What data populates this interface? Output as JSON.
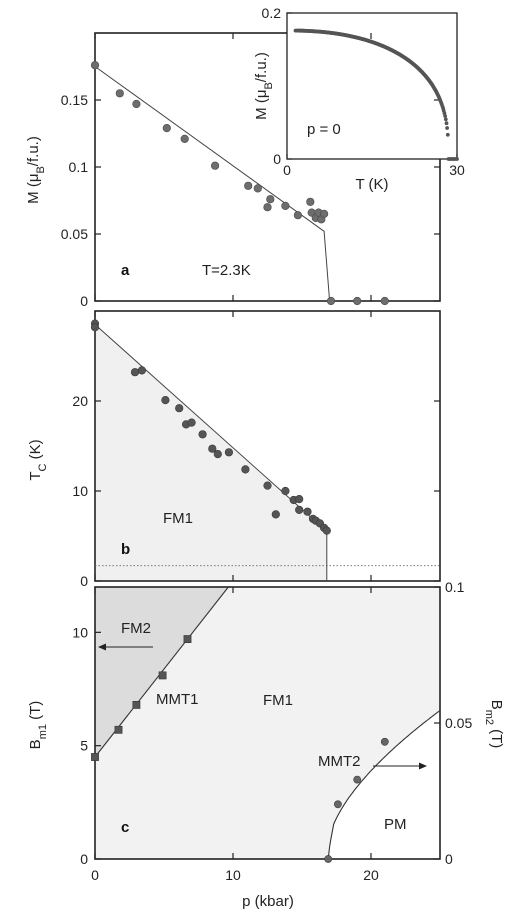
{
  "chart_data": [
    {
      "panel": "a",
      "type": "scatter",
      "annotation": "T=2.3K",
      "ylabel_main": "M (μ",
      "ylabel_sub": "B",
      "ylabel_tail": "/f.u.)",
      "xlim": [
        0,
        25
      ],
      "ylim": [
        0,
        0.2
      ],
      "yticks": [
        "0",
        "0.05",
        "0.1",
        "0.15"
      ],
      "points": [
        [
          0,
          0.176
        ],
        [
          1.8,
          0.155
        ],
        [
          3,
          0.147
        ],
        [
          5.2,
          0.129
        ],
        [
          6.5,
          0.121
        ],
        [
          8.7,
          0.101
        ],
        [
          11.1,
          0.086
        ],
        [
          11.8,
          0.084
        ],
        [
          12.7,
          0.076
        ],
        [
          12.5,
          0.07
        ],
        [
          13.8,
          0.071
        ],
        [
          14.7,
          0.064
        ],
        [
          15.6,
          0.074
        ],
        [
          15.7,
          0.066
        ],
        [
          16,
          0.062
        ],
        [
          16.2,
          0.066
        ],
        [
          16.4,
          0.061
        ],
        [
          16.6,
          0.065
        ],
        [
          17.1,
          0
        ],
        [
          19,
          0
        ],
        [
          21,
          0
        ]
      ],
      "fit_line": [
        [
          0,
          0.175
        ],
        [
          16.6,
          0.052
        ],
        [
          17,
          0
        ]
      ]
    },
    {
      "panel": "inset",
      "type": "scatter",
      "annotation": "p = 0",
      "xlabel": "T (K)",
      "ylabel_main": "M (μ",
      "ylabel_sub": "B",
      "ylabel_tail": "/f.u.)",
      "xlim": [
        0,
        30
      ],
      "ylim": [
        0,
        0.2
      ],
      "xticks": [
        "0",
        "30"
      ],
      "yticks": [
        "0",
        "0.2"
      ],
      "curve_Tc": 28.5,
      "curve_M0": 0.176
    },
    {
      "panel": "b",
      "type": "scatter",
      "region_label": "FM1",
      "ylabel_main": "T",
      "ylabel_sub": "C",
      "ylabel_tail": " (K)",
      "xlim": [
        0,
        25
      ],
      "ylim": [
        0,
        30
      ],
      "yticks": [
        "0",
        "10",
        "20"
      ],
      "dotted_line_y": 1.7,
      "points": [
        [
          0,
          28.6
        ],
        [
          0,
          28.2
        ],
        [
          2.9,
          23.2
        ],
        [
          3.4,
          23.4
        ],
        [
          5.1,
          20.1
        ],
        [
          6.1,
          19.2
        ],
        [
          6.6,
          17.4
        ],
        [
          7,
          17.6
        ],
        [
          7.8,
          16.3
        ],
        [
          8.5,
          14.7
        ],
        [
          8.9,
          14.1
        ],
        [
          9.7,
          14.3
        ],
        [
          10.9,
          12.4
        ],
        [
          12.5,
          10.6
        ],
        [
          13.1,
          7.4
        ],
        [
          13.8,
          10
        ],
        [
          14.4,
          9
        ],
        [
          14.8,
          9.1
        ],
        [
          14.8,
          7.9
        ],
        [
          15.4,
          7.7
        ],
        [
          15.8,
          6.9
        ],
        [
          16,
          6.7
        ],
        [
          16.3,
          6.4
        ],
        [
          16.6,
          5.9
        ],
        [
          16.8,
          5.6
        ]
      ],
      "phase_line": [
        [
          0,
          28.5
        ],
        [
          16.8,
          5.5
        ],
        [
          16.8,
          0
        ]
      ]
    },
    {
      "panel": "c",
      "type": "line",
      "xlabel": "p (kbar)",
      "ylabel_main": "B",
      "ylabel_sub": "m1",
      "ylabel_tail": " (T)",
      "y2label_main": "B",
      "y2label_sub": "m2",
      "y2label_tail": " (T)",
      "xlim": [
        0,
        25
      ],
      "ylim": [
        0,
        12
      ],
      "y2lim": [
        0,
        0.1
      ],
      "xticks": [
        "0",
        "10",
        "20"
      ],
      "yticks": [
        "0",
        "5",
        "10"
      ],
      "y2ticks": [
        "0",
        "0.05",
        "0.1"
      ],
      "labels": [
        "FM2",
        "MMT1",
        "FM1",
        "MMT2",
        "PM"
      ],
      "bm1_squares": [
        [
          0,
          4.5
        ],
        [
          1.7,
          5.7
        ],
        [
          3,
          6.8
        ],
        [
          4.9,
          8.1
        ],
        [
          6.7,
          9.7
        ]
      ],
      "bm2_circles": [
        [
          16.9,
          0
        ],
        [
          17.6,
          0.0201
        ],
        [
          19,
          0.0292
        ],
        [
          21,
          0.0431
        ]
      ]
    }
  ],
  "axes": {
    "x_ticks": [
      "0",
      "10",
      "20"
    ],
    "x_label": "p (kbar)"
  }
}
